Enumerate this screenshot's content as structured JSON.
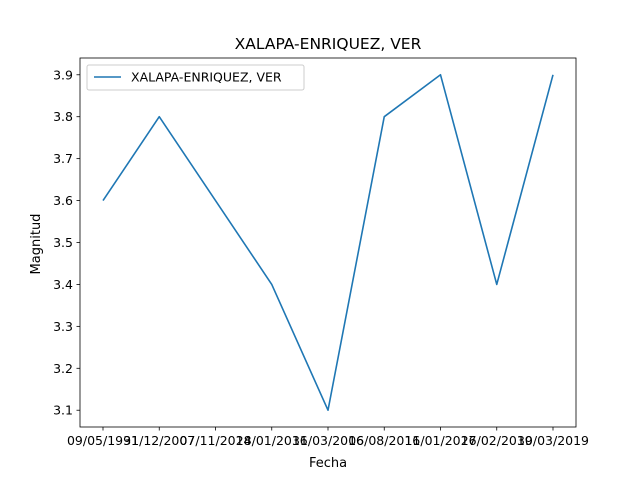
{
  "chart_data": {
    "type": "line",
    "title": "XALAPA-ENRIQUEZ, VER",
    "xlabel": "Fecha",
    "ylabel": "Magnitud",
    "categories": [
      "09/05/1991",
      "31/12/2007",
      "07/11/2014",
      "28/01/2016",
      "31/03/2016",
      "06/08/2016",
      "11/01/2017",
      "26/02/2019",
      "30/03/2019"
    ],
    "series": [
      {
        "name": "XALAPA-ENRIQUEZ, VER",
        "values": [
          3.6,
          3.8,
          3.6,
          3.4,
          3.1,
          3.8,
          3.9,
          3.4,
          3.9
        ],
        "color": "#1f77b4"
      }
    ],
    "ylim": [
      3.06,
      3.94
    ],
    "yticks": [
      "3.1",
      "3.2",
      "3.3",
      "3.4",
      "3.5",
      "3.6",
      "3.7",
      "3.8",
      "3.9"
    ],
    "grid": false,
    "legend": "top-left"
  }
}
